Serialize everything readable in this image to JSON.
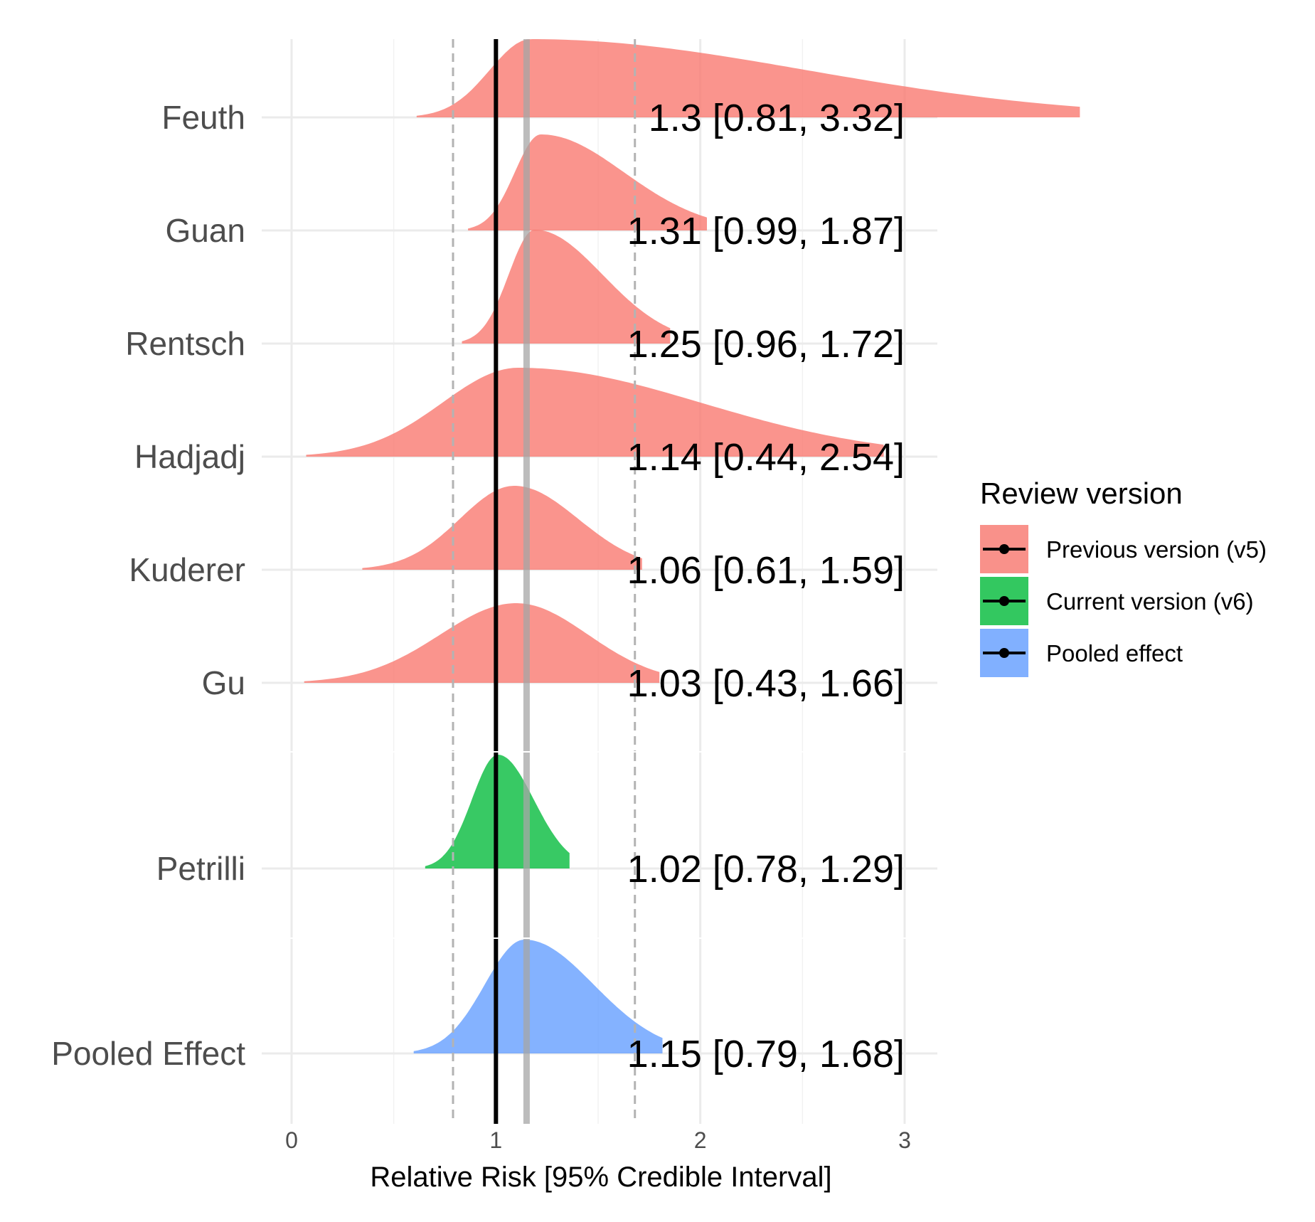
{
  "chart_data": {
    "type": "area",
    "title": "",
    "xlabel": "Relative Risk [95% Credible Interval]",
    "ylabel": "",
    "xlim": [
      -0.1,
      3.15
    ],
    "x_ticks": [
      "0",
      "1",
      "2",
      "3"
    ],
    "grid": true,
    "reference_lines": {
      "null_effect": 1.0,
      "pooled_estimate": 1.15,
      "pooled_interval": [
        0.79,
        1.68
      ]
    },
    "legend": {
      "title": "Review version",
      "placement": "right",
      "entries": [
        {
          "label": "Previous version (v5)",
          "color": "#F8766D"
        },
        {
          "label": "Current version (v6)",
          "color": "#00BA38"
        },
        {
          "label": "Pooled effect",
          "color": "#619CFF"
        }
      ]
    },
    "series": [
      {
        "name": "Feuth",
        "group": 0,
        "mode": 1.17,
        "lower": 0.81,
        "upper": 3.32,
        "label": "1.3 [0.81, 3.32]"
      },
      {
        "name": "Guan",
        "group": 0,
        "mode": 1.22,
        "lower": 0.99,
        "upper": 1.87,
        "label": "1.31 [0.99, 1.87]"
      },
      {
        "name": "Rentsch",
        "group": 0,
        "mode": 1.19,
        "lower": 0.96,
        "upper": 1.72,
        "label": "1.25 [0.96, 1.72]"
      },
      {
        "name": "Hadjadj",
        "group": 0,
        "mode": 1.11,
        "lower": 0.44,
        "upper": 2.54,
        "label": "1.14 [0.44, 2.54]"
      },
      {
        "name": "Kuderer",
        "group": 0,
        "mode": 1.09,
        "lower": 0.61,
        "upper": 1.59,
        "label": "1.06 [0.61, 1.59]"
      },
      {
        "name": "Gu",
        "group": 0,
        "mode": 1.1,
        "lower": 0.43,
        "upper": 1.66,
        "label": "1.03 [0.43, 1.66]"
      },
      {
        "name": "Petrilli",
        "group": 1,
        "mode": 1.01,
        "lower": 0.78,
        "upper": 1.29,
        "label": "1.02 [0.78, 1.29]"
      },
      {
        "name": "Pooled Effect",
        "group": 2,
        "mode": 1.14,
        "lower": 0.79,
        "upper": 1.68,
        "label": "1.15 [0.79, 1.68]"
      }
    ]
  }
}
